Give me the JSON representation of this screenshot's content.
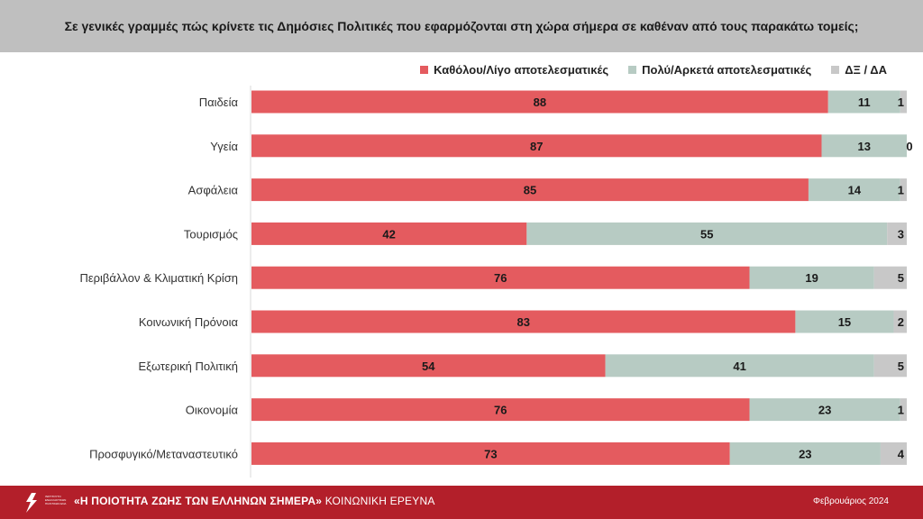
{
  "question": "Σε γενικές γραμμές πώς κρίνετε τις Δημόσιες Πολιτικές που εφαρμόζονται στη χώρα σήμερα σε καθέναν από τους παρακάτω τομείς;",
  "colors": {
    "red": "#e45b5f",
    "green": "#b7cbc3",
    "gray": "#c8c8c8",
    "footer": "#b31f2a",
    "header": "#bfbfbf"
  },
  "chart_data": {
    "type": "bar",
    "orientation": "horizontal",
    "stacked": true,
    "categories": [
      "Παιδεία",
      "Υγεία",
      "Ασφάλεια",
      "Τουρισμός",
      "Περιβάλλον & Κλιματική Κρίση",
      "Κοινωνική Πρόνοια",
      "Εξωτερική Πολιτική",
      "Οικονομία",
      "Προσφυγικό/Μεταναστευτικό"
    ],
    "series": [
      {
        "name": "Καθόλου/Λίγο αποτελεσματικές",
        "color": "#e45b5f",
        "values": [
          88,
          87,
          85,
          42,
          76,
          83,
          54,
          76,
          73
        ]
      },
      {
        "name": "Πολύ/Αρκετά αποτελεσματικές",
        "color": "#b7cbc3",
        "values": [
          11,
          13,
          14,
          55,
          19,
          15,
          41,
          23,
          23
        ]
      },
      {
        "name": "ΔΞ / ΔΑ",
        "color": "#c8c8c8",
        "values": [
          1,
          0,
          1,
          3,
          5,
          2,
          5,
          1,
          4
        ]
      }
    ],
    "xlim": [
      0,
      100
    ],
    "legend_position": "top-right"
  },
  "footer": {
    "logo_text": "ΙΝΣΤΙΤΟΥΤΟ ΕΝΑΛΛΑΚΤΙΚΩΝ ΠΟΛΙΤΙΚΩΝ ENA",
    "title_bold": "«Η ΠΟΙΟΤΗΤΑ ΖΩΗΣ ΤΩΝ ΕΛΛΗΝΩΝ ΣΗΜΕΡΑ»",
    "title_rest": " ΚΟΙΝΩΝΙΚΗ ΕΡΕΥΝΑ",
    "date": "Φεβρουάριος 2024"
  }
}
